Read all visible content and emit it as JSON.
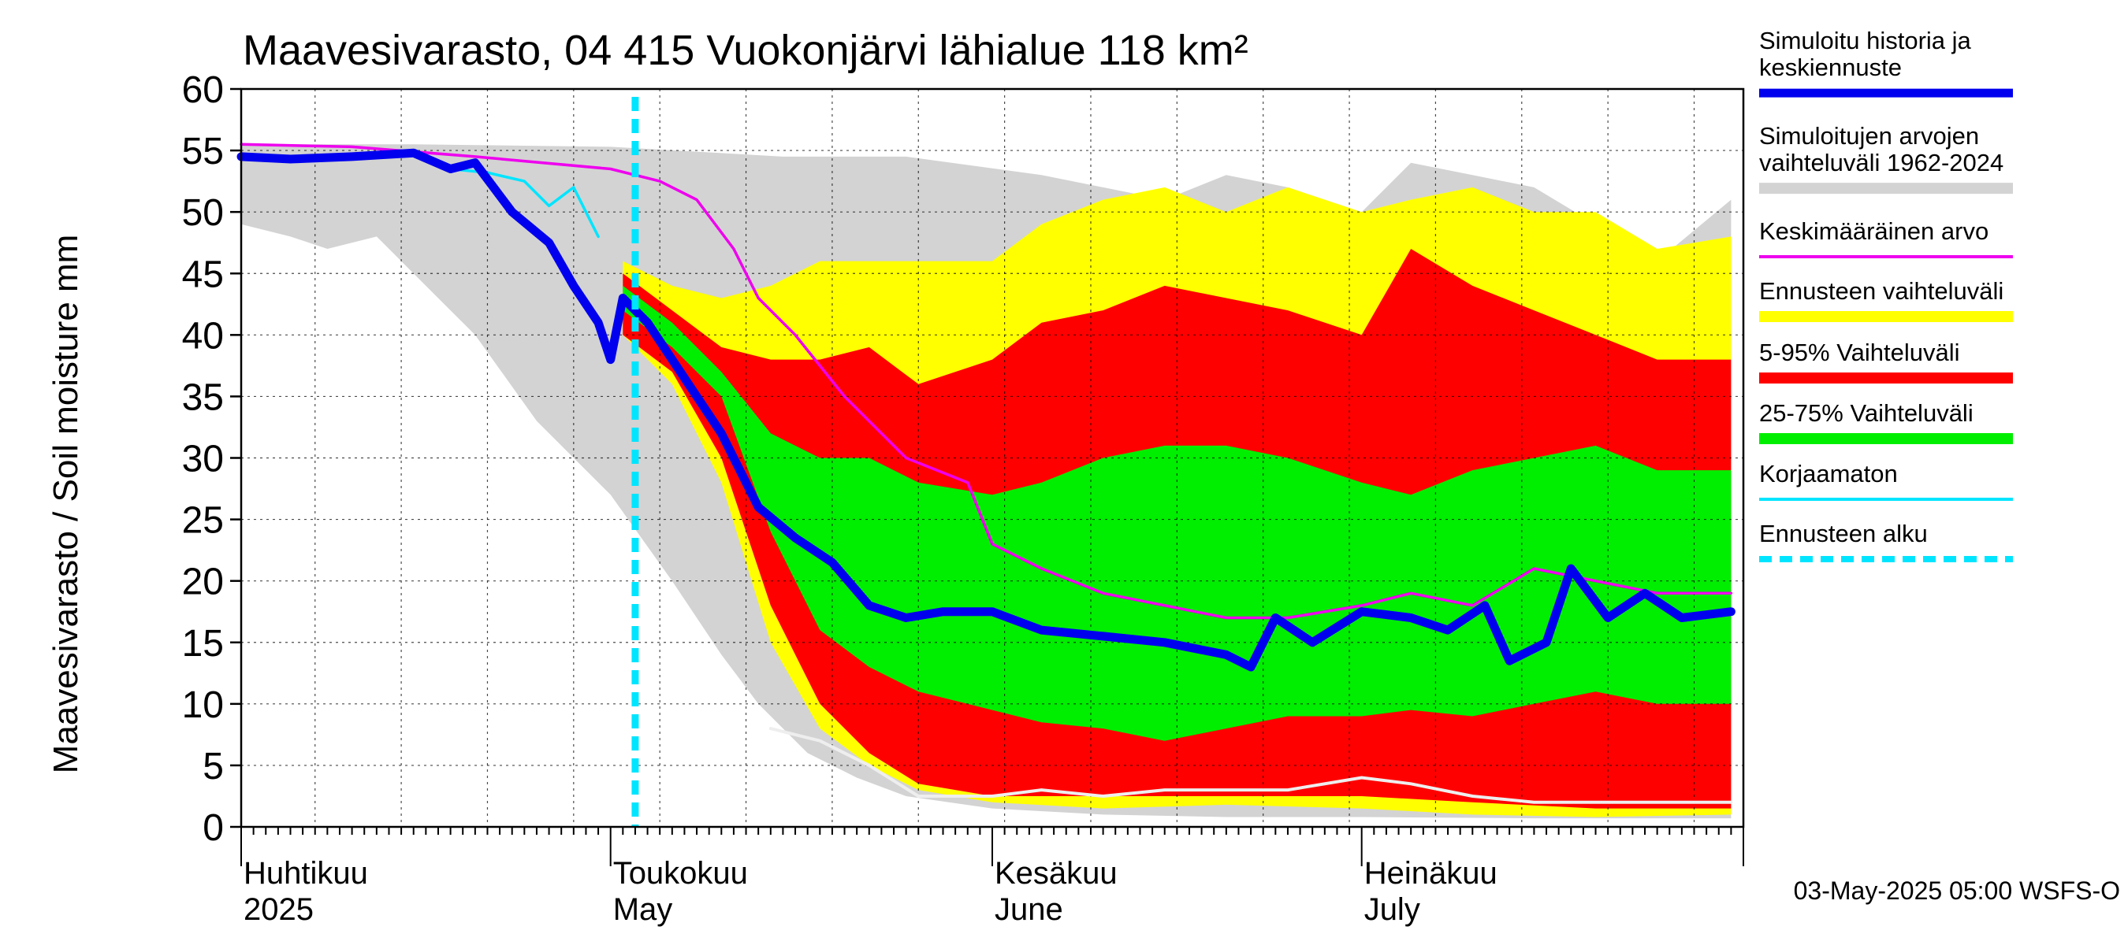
{
  "chart_data": {
    "type": "area",
    "title": "Maavesivarasto, 04 415 Vuokonjärvi lähialue 118 km²",
    "ylabel": "Maavesivarasto / Soil moisture   mm",
    "ylim": [
      0,
      60
    ],
    "yticks": [
      0,
      5,
      10,
      15,
      20,
      25,
      30,
      35,
      40,
      45,
      50,
      55,
      60
    ],
    "xlim": [
      "2025-04-01",
      "2025-07-31"
    ],
    "month_labels": [
      {
        "fi": "Huhtikuu",
        "en": "2025",
        "date": "2025-04-01"
      },
      {
        "fi": "Toukokuu",
        "en": "May",
        "date": "2025-05-01"
      },
      {
        "fi": "Kesäkuu",
        "en": "June",
        "date": "2025-06-01"
      },
      {
        "fi": "Heinäkuu",
        "en": "July",
        "date": "2025-07-01"
      }
    ],
    "forecast_start": "2025-05-03",
    "timestamp": "03-May-2025 05:00 WSFS-O",
    "legend_placement": "right",
    "colors": {
      "history_range": "#d3d3d3",
      "forecast_range": "#ffff00",
      "p5_95": "#ff0000",
      "p25_75": "#00ee00",
      "median": "#0000ee",
      "mean": "#ee00ee",
      "uncorrected": "#00e5ff",
      "forecast_start": "#00e5ff",
      "minline": "#eeeeee"
    },
    "legend": [
      {
        "label": "Simuloitu historia ja keskiennuste",
        "color": "#0000ee",
        "style": "thick"
      },
      {
        "label": "Simuloitujen arvojen vaihteluväli 1962-2024",
        "color": "#d3d3d3",
        "style": "band"
      },
      {
        "label": "Keskimääräinen arvo",
        "color": "#ee00ee",
        "style": "thin"
      },
      {
        "label": "Ennusteen vaihteluväli",
        "color": "#ffff00",
        "style": "band"
      },
      {
        "label": "5-95% Vaihteluväli",
        "color": "#ff0000",
        "style": "band"
      },
      {
        "label": "25-75% Vaihteluväli",
        "color": "#00ee00",
        "style": "band"
      },
      {
        "label": "Korjaamaton",
        "color": "#00e5ff",
        "style": "thin"
      },
      {
        "label": "Ennusteen alku",
        "color": "#00e5ff",
        "style": "dashed"
      }
    ],
    "series": [
      {
        "key": "history_range",
        "upper": [
          [
            "2025-04-01",
            55.5
          ],
          [
            "2025-04-15",
            55.5
          ],
          [
            "2025-05-01",
            55.3
          ],
          [
            "2025-05-15",
            54.5
          ],
          [
            "2025-05-25",
            54.5
          ],
          [
            "2025-06-05",
            53
          ],
          [
            "2025-06-10",
            52
          ],
          [
            "2025-06-15",
            51
          ],
          [
            "2025-06-20",
            53
          ],
          [
            "2025-06-25",
            52
          ],
          [
            "2025-07-01",
            50
          ],
          [
            "2025-07-05",
            54
          ],
          [
            "2025-07-10",
            53
          ],
          [
            "2025-07-15",
            52
          ],
          [
            "2025-07-20",
            49
          ],
          [
            "2025-07-25",
            46
          ],
          [
            "2025-07-31",
            51
          ]
        ],
        "lower": [
          [
            "2025-04-01",
            49
          ],
          [
            "2025-04-05",
            48
          ],
          [
            "2025-04-08",
            47
          ],
          [
            "2025-04-12",
            48
          ],
          [
            "2025-04-16",
            44
          ],
          [
            "2025-04-20",
            40
          ],
          [
            "2025-04-25",
            33
          ],
          [
            "2025-05-01",
            27
          ],
          [
            "2025-05-06",
            20
          ],
          [
            "2025-05-10",
            14
          ],
          [
            "2025-05-13",
            10
          ],
          [
            "2025-05-17",
            6
          ],
          [
            "2025-05-21",
            4
          ],
          [
            "2025-05-25",
            2.5
          ],
          [
            "2025-06-01",
            1.5
          ],
          [
            "2025-06-10",
            1
          ],
          [
            "2025-06-20",
            0.8
          ],
          [
            "2025-07-01",
            0.8
          ],
          [
            "2025-07-15",
            0.7
          ],
          [
            "2025-07-31",
            0.7
          ]
        ]
      },
      {
        "key": "forecast_range",
        "upper": [
          [
            "2025-05-02",
            46
          ],
          [
            "2025-05-06",
            44
          ],
          [
            "2025-05-10",
            43
          ],
          [
            "2025-05-14",
            44
          ],
          [
            "2025-05-18",
            46
          ],
          [
            "2025-05-22",
            46
          ],
          [
            "2025-05-26",
            46
          ],
          [
            "2025-06-01",
            46
          ],
          [
            "2025-06-05",
            49
          ],
          [
            "2025-06-10",
            51
          ],
          [
            "2025-06-15",
            52
          ],
          [
            "2025-06-20",
            50
          ],
          [
            "2025-06-25",
            52
          ],
          [
            "2025-07-01",
            50
          ],
          [
            "2025-07-05",
            51
          ],
          [
            "2025-07-10",
            52
          ],
          [
            "2025-07-15",
            50
          ],
          [
            "2025-07-20",
            50
          ],
          [
            "2025-07-25",
            47
          ],
          [
            "2025-07-31",
            48
          ]
        ],
        "lower": [
          [
            "2025-05-02",
            40
          ],
          [
            "2025-05-06",
            36
          ],
          [
            "2025-05-10",
            28
          ],
          [
            "2025-05-14",
            15
          ],
          [
            "2025-05-18",
            8
          ],
          [
            "2025-05-22",
            5
          ],
          [
            "2025-05-26",
            3
          ],
          [
            "2025-06-01",
            2
          ],
          [
            "2025-06-10",
            1.5
          ],
          [
            "2025-06-20",
            1.8
          ],
          [
            "2025-07-01",
            1.5
          ],
          [
            "2025-07-10",
            1
          ],
          [
            "2025-07-20",
            0.8
          ],
          [
            "2025-07-31",
            1
          ]
        ]
      },
      {
        "key": "p5_95",
        "upper": [
          [
            "2025-05-02",
            45
          ],
          [
            "2025-05-06",
            42
          ],
          [
            "2025-05-10",
            39
          ],
          [
            "2025-05-14",
            38
          ],
          [
            "2025-05-18",
            38
          ],
          [
            "2025-05-22",
            39
          ],
          [
            "2025-05-26",
            36
          ],
          [
            "2025-06-01",
            38
          ],
          [
            "2025-06-05",
            41
          ],
          [
            "2025-06-10",
            42
          ],
          [
            "2025-06-15",
            44
          ],
          [
            "2025-06-20",
            43
          ],
          [
            "2025-06-25",
            42
          ],
          [
            "2025-07-01",
            40
          ],
          [
            "2025-07-05",
            47
          ],
          [
            "2025-07-10",
            44
          ],
          [
            "2025-07-15",
            42
          ],
          [
            "2025-07-20",
            40
          ],
          [
            "2025-07-25",
            38
          ],
          [
            "2025-07-31",
            38
          ]
        ],
        "lower": [
          [
            "2025-05-02",
            40
          ],
          [
            "2025-05-06",
            37
          ],
          [
            "2025-05-10",
            30
          ],
          [
            "2025-05-14",
            18
          ],
          [
            "2025-05-18",
            10
          ],
          [
            "2025-05-22",
            6
          ],
          [
            "2025-05-26",
            3.5
          ],
          [
            "2025-06-01",
            2.5
          ],
          [
            "2025-06-10",
            2.5
          ],
          [
            "2025-06-20",
            2.5
          ],
          [
            "2025-07-01",
            2.5
          ],
          [
            "2025-07-10",
            2
          ],
          [
            "2025-07-20",
            1.5
          ],
          [
            "2025-07-31",
            1.5
          ]
        ]
      },
      {
        "key": "p25_75",
        "upper": [
          [
            "2025-05-02",
            44
          ],
          [
            "2025-05-06",
            41
          ],
          [
            "2025-05-10",
            37
          ],
          [
            "2025-05-14",
            32
          ],
          [
            "2025-05-18",
            30
          ],
          [
            "2025-05-22",
            30
          ],
          [
            "2025-05-26",
            28
          ],
          [
            "2025-06-01",
            27
          ],
          [
            "2025-06-05",
            28
          ],
          [
            "2025-06-10",
            30
          ],
          [
            "2025-06-15",
            31
          ],
          [
            "2025-06-20",
            31
          ],
          [
            "2025-06-25",
            30
          ],
          [
            "2025-07-01",
            28
          ],
          [
            "2025-07-05",
            27
          ],
          [
            "2025-07-10",
            29
          ],
          [
            "2025-07-15",
            30
          ],
          [
            "2025-07-20",
            31
          ],
          [
            "2025-07-25",
            29
          ],
          [
            "2025-07-31",
            29
          ]
        ],
        "lower": [
          [
            "2025-05-02",
            42
          ],
          [
            "2025-05-06",
            39
          ],
          [
            "2025-05-10",
            35
          ],
          [
            "2025-05-14",
            24
          ],
          [
            "2025-05-18",
            16
          ],
          [
            "2025-05-22",
            13
          ],
          [
            "2025-05-26",
            11
          ],
          [
            "2025-06-01",
            9.5
          ],
          [
            "2025-06-05",
            8.5
          ],
          [
            "2025-06-10",
            8
          ],
          [
            "2025-06-15",
            7
          ],
          [
            "2025-06-20",
            8
          ],
          [
            "2025-06-25",
            9
          ],
          [
            "2025-07-01",
            9
          ],
          [
            "2025-07-05",
            9.5
          ],
          [
            "2025-07-10",
            9
          ],
          [
            "2025-07-15",
            10
          ],
          [
            "2025-07-20",
            11
          ],
          [
            "2025-07-25",
            10
          ],
          [
            "2025-07-31",
            10
          ]
        ]
      },
      {
        "key": "min_line",
        "values": [
          [
            "2025-05-14",
            8
          ],
          [
            "2025-05-18",
            7
          ],
          [
            "2025-05-22",
            5
          ],
          [
            "2025-05-26",
            2.5
          ],
          [
            "2025-06-01",
            2.5
          ],
          [
            "2025-06-05",
            3
          ],
          [
            "2025-06-10",
            2.5
          ],
          [
            "2025-06-15",
            3
          ],
          [
            "2025-06-20",
            3
          ],
          [
            "2025-06-25",
            3
          ],
          [
            "2025-07-01",
            4
          ],
          [
            "2025-07-05",
            3.5
          ],
          [
            "2025-07-10",
            2.5
          ],
          [
            "2025-07-15",
            2
          ],
          [
            "2025-07-20",
            2
          ],
          [
            "2025-07-25",
            2
          ],
          [
            "2025-07-31",
            2
          ]
        ]
      },
      {
        "key": "mean",
        "values": [
          [
            "2025-04-01",
            55.5
          ],
          [
            "2025-04-10",
            55.3
          ],
          [
            "2025-04-20",
            54.5
          ],
          [
            "2025-05-01",
            53.5
          ],
          [
            "2025-05-05",
            52.5
          ],
          [
            "2025-05-08",
            51
          ],
          [
            "2025-05-11",
            47
          ],
          [
            "2025-05-13",
            43
          ],
          [
            "2025-05-16",
            40
          ],
          [
            "2025-05-20",
            35
          ],
          [
            "2025-05-25",
            30
          ],
          [
            "2025-05-30",
            28
          ],
          [
            "2025-06-01",
            23
          ],
          [
            "2025-06-05",
            21
          ],
          [
            "2025-06-10",
            19
          ],
          [
            "2025-06-15",
            18
          ],
          [
            "2025-06-20",
            17
          ],
          [
            "2025-06-25",
            17
          ],
          [
            "2025-07-01",
            18
          ],
          [
            "2025-07-05",
            19
          ],
          [
            "2025-07-10",
            18
          ],
          [
            "2025-07-15",
            21
          ],
          [
            "2025-07-20",
            20
          ],
          [
            "2025-07-25",
            19
          ],
          [
            "2025-07-31",
            19
          ]
        ]
      },
      {
        "key": "uncorrected",
        "values": [
          [
            "2025-04-01",
            54.5
          ],
          [
            "2025-04-05",
            54.3
          ],
          [
            "2025-04-10",
            54.5
          ],
          [
            "2025-04-15",
            54.8
          ],
          [
            "2025-04-18",
            53.5
          ],
          [
            "2025-04-21",
            53.2
          ],
          [
            "2025-04-24",
            52.5
          ],
          [
            "2025-04-26",
            50.5
          ],
          [
            "2025-04-28",
            52
          ],
          [
            "2025-04-30",
            48
          ]
        ]
      },
      {
        "key": "median",
        "values": [
          [
            "2025-04-01",
            54.5
          ],
          [
            "2025-04-05",
            54.3
          ],
          [
            "2025-04-10",
            54.5
          ],
          [
            "2025-04-15",
            54.8
          ],
          [
            "2025-04-18",
            53.5
          ],
          [
            "2025-04-20",
            54
          ],
          [
            "2025-04-23",
            50
          ],
          [
            "2025-04-26",
            47.5
          ],
          [
            "2025-04-28",
            44
          ],
          [
            "2025-04-30",
            41
          ],
          [
            "2025-05-01",
            38
          ],
          [
            "2025-05-02",
            43
          ],
          [
            "2025-05-04",
            41
          ],
          [
            "2025-05-06",
            38
          ],
          [
            "2025-05-10",
            32
          ],
          [
            "2025-05-13",
            26
          ],
          [
            "2025-05-16",
            23.5
          ],
          [
            "2025-05-19",
            21.5
          ],
          [
            "2025-05-22",
            18
          ],
          [
            "2025-05-25",
            17
          ],
          [
            "2025-05-28",
            17.5
          ],
          [
            "2025-06-01",
            17.5
          ],
          [
            "2025-06-05",
            16
          ],
          [
            "2025-06-10",
            15.5
          ],
          [
            "2025-06-15",
            15
          ],
          [
            "2025-06-20",
            14
          ],
          [
            "2025-06-22",
            13
          ],
          [
            "2025-06-24",
            17
          ],
          [
            "2025-06-27",
            15
          ],
          [
            "2025-07-01",
            17.5
          ],
          [
            "2025-07-05",
            17
          ],
          [
            "2025-07-08",
            16
          ],
          [
            "2025-07-11",
            18
          ],
          [
            "2025-07-13",
            13.5
          ],
          [
            "2025-07-16",
            15
          ],
          [
            "2025-07-18",
            21
          ],
          [
            "2025-07-21",
            17
          ],
          [
            "2025-07-24",
            19
          ],
          [
            "2025-07-27",
            17
          ],
          [
            "2025-07-31",
            17.5
          ]
        ]
      }
    ]
  }
}
